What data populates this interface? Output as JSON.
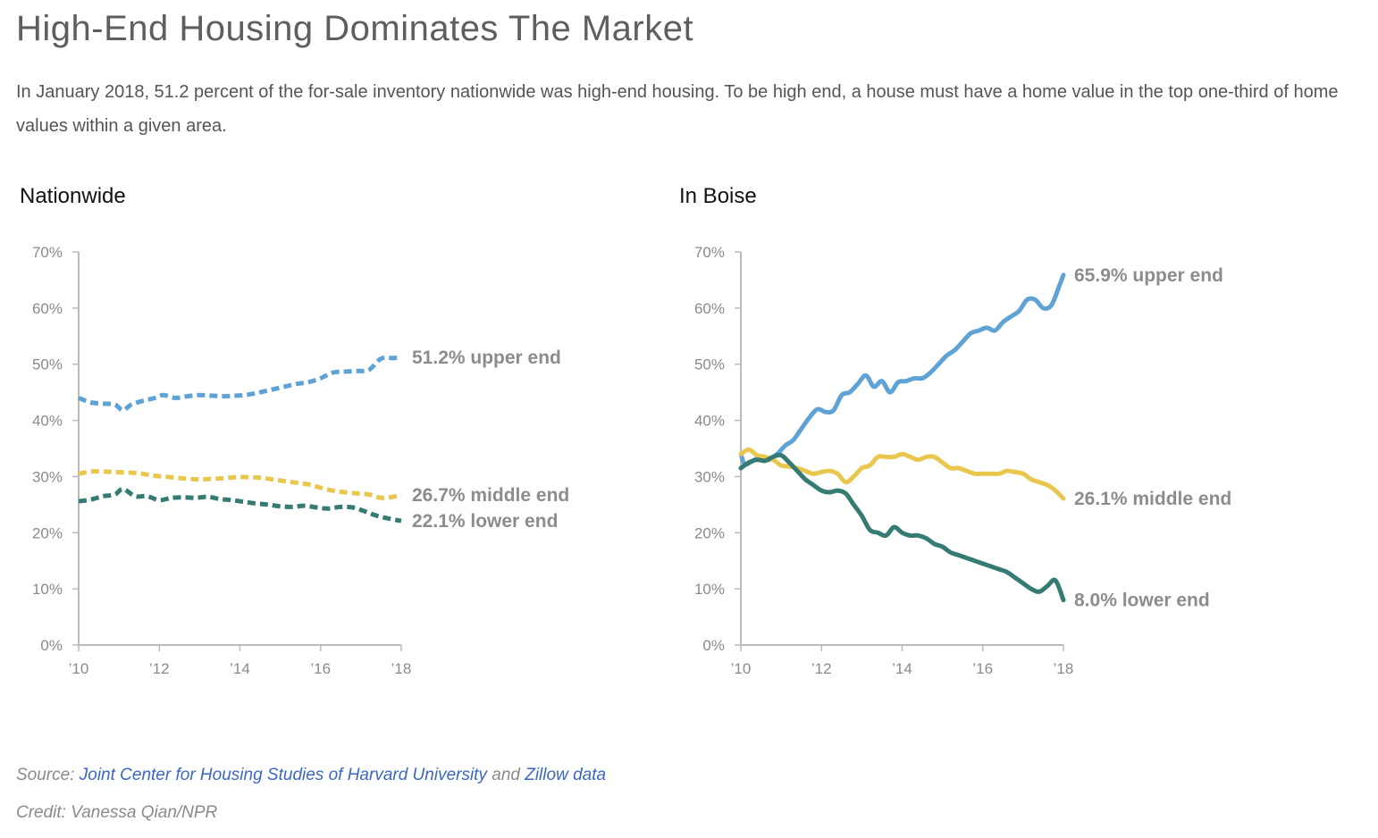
{
  "title": "High-End Housing Dominates The Market",
  "subtitle": "In January 2018, 51.2 percent of the for-sale inventory nationwide was high-end housing. To be high end, a house must have a home value in the top one-third of home values within a given area.",
  "footer": {
    "source_prefix": "Source:",
    "source_link_1": "Joint Center for Housing Studies of Harvard University",
    "source_and": "and",
    "source_link_2": "Zillow data",
    "credit": "Credit: Vanessa Qian/NPR"
  },
  "colors": {
    "upper": "#5fa3d6",
    "middle": "#e9c74f",
    "lower": "#357b74",
    "axis": "#bbbbbb",
    "label": "#8c8c8c"
  },
  "chart_data": [
    {
      "type": "line",
      "title": "Nationwide",
      "line_style": "dashed",
      "x_ticks": [
        2010,
        2012,
        2014,
        2016,
        2018
      ],
      "x_tick_labels": [
        "’10",
        "’12",
        "’14",
        "’16",
        "’18"
      ],
      "y_ticks": [
        0,
        10,
        20,
        30,
        40,
        50,
        60,
        70
      ],
      "y_tick_labels": [
        "0%",
        "10%",
        "20%",
        "30%",
        "40%",
        "50%",
        "60%",
        "70%"
      ],
      "xlim": [
        2010,
        2018
      ],
      "ylim": [
        0,
        70
      ],
      "series": [
        {
          "key": "upper",
          "label": "51.2% upper end",
          "x": [
            2010.0,
            2010.3,
            2010.6,
            2010.9,
            2011.1,
            2011.3,
            2011.6,
            2011.9,
            2012.1,
            2012.4,
            2012.7,
            2013.0,
            2013.3,
            2013.6,
            2013.9,
            2014.2,
            2014.5,
            2014.8,
            2015.1,
            2015.4,
            2015.7,
            2016.0,
            2016.3,
            2016.6,
            2016.9,
            2017.2,
            2017.5,
            2017.8,
            2018.0
          ],
          "y": [
            44.0,
            43.2,
            43.0,
            42.8,
            41.8,
            42.8,
            43.5,
            44.0,
            44.5,
            44.0,
            44.3,
            44.5,
            44.4,
            44.3,
            44.4,
            44.6,
            45.0,
            45.5,
            46.0,
            46.5,
            46.8,
            47.5,
            48.5,
            48.7,
            48.8,
            49.0,
            51.0,
            51.1,
            51.2
          ]
        },
        {
          "key": "middle",
          "label": "26.7% middle end",
          "x": [
            2010.0,
            2010.3,
            2010.6,
            2010.9,
            2011.2,
            2011.5,
            2011.8,
            2012.1,
            2012.4,
            2012.7,
            2013.0,
            2013.3,
            2013.6,
            2013.9,
            2014.2,
            2014.5,
            2014.8,
            2015.1,
            2015.4,
            2015.7,
            2016.0,
            2016.3,
            2016.6,
            2016.9,
            2017.2,
            2017.5,
            2017.8,
            2018.0
          ],
          "y": [
            30.5,
            30.9,
            30.9,
            30.8,
            30.7,
            30.6,
            30.2,
            30.0,
            29.8,
            29.6,
            29.5,
            29.6,
            29.7,
            29.9,
            29.9,
            29.8,
            29.5,
            29.2,
            28.9,
            28.6,
            28.0,
            27.5,
            27.2,
            27.0,
            26.8,
            26.2,
            26.4,
            26.7
          ]
        },
        {
          "key": "lower",
          "label": "22.1% lower end",
          "x": [
            2010.0,
            2010.3,
            2010.6,
            2010.9,
            2011.1,
            2011.4,
            2011.7,
            2012.0,
            2012.3,
            2012.6,
            2012.9,
            2013.2,
            2013.5,
            2013.8,
            2014.1,
            2014.4,
            2014.7,
            2015.0,
            2015.3,
            2015.6,
            2015.9,
            2016.2,
            2016.5,
            2016.8,
            2017.1,
            2017.4,
            2017.7,
            2018.0
          ],
          "y": [
            25.6,
            25.9,
            26.5,
            26.8,
            27.8,
            26.5,
            26.5,
            25.8,
            26.2,
            26.3,
            26.2,
            26.4,
            26.0,
            25.8,
            25.5,
            25.2,
            25.0,
            24.7,
            24.6,
            24.8,
            24.5,
            24.3,
            24.6,
            24.5,
            23.8,
            23.0,
            22.5,
            22.1
          ]
        }
      ]
    },
    {
      "type": "line",
      "title": "In Boise",
      "line_style": "solid",
      "x_ticks": [
        2010,
        2012,
        2014,
        2016,
        2018
      ],
      "x_tick_labels": [
        "’10",
        "’12",
        "’14",
        "’16",
        "’18"
      ],
      "y_ticks": [
        0,
        10,
        20,
        30,
        40,
        50,
        60,
        70
      ],
      "y_tick_labels": [
        "0%",
        "10%",
        "20%",
        "30%",
        "40%",
        "50%",
        "60%",
        "70%"
      ],
      "xlim": [
        2010,
        2018
      ],
      "ylim": [
        0,
        70
      ],
      "series": [
        {
          "key": "upper",
          "label": "65.9% upper end",
          "x": [
            2010.0,
            2010.1,
            2010.3,
            2010.5,
            2010.7,
            2010.9,
            2011.1,
            2011.3,
            2011.5,
            2011.7,
            2011.9,
            2012.1,
            2012.3,
            2012.5,
            2012.7,
            2012.9,
            2013.1,
            2013.3,
            2013.5,
            2013.7,
            2013.9,
            2014.1,
            2014.3,
            2014.5,
            2014.7,
            2014.9,
            2015.1,
            2015.3,
            2015.5,
            2015.7,
            2015.9,
            2016.1,
            2016.3,
            2016.5,
            2016.7,
            2016.9,
            2017.1,
            2017.3,
            2017.5,
            2017.7,
            2017.9,
            2018.0
          ],
          "y": [
            34.0,
            32.2,
            32.8,
            33.5,
            33.0,
            34.0,
            35.5,
            36.5,
            38.5,
            40.5,
            42.0,
            41.5,
            41.8,
            44.5,
            45.0,
            46.5,
            48.0,
            46.0,
            47.0,
            45.0,
            46.8,
            47.0,
            47.5,
            47.5,
            48.5,
            50.0,
            51.5,
            52.5,
            54.0,
            55.5,
            56.0,
            56.5,
            56.0,
            57.5,
            58.5,
            59.5,
            61.5,
            61.5,
            60.0,
            60.5,
            64.0,
            65.9
          ]
        },
        {
          "key": "middle",
          "label": "26.1% middle end",
          "x": [
            2010.0,
            2010.2,
            2010.4,
            2010.6,
            2010.8,
            2011.0,
            2011.2,
            2011.4,
            2011.6,
            2011.8,
            2012.0,
            2012.2,
            2012.4,
            2012.6,
            2012.8,
            2013.0,
            2013.2,
            2013.4,
            2013.6,
            2013.8,
            2014.0,
            2014.2,
            2014.4,
            2014.6,
            2014.8,
            2015.0,
            2015.2,
            2015.4,
            2015.6,
            2015.8,
            2016.0,
            2016.2,
            2016.4,
            2016.6,
            2016.8,
            2017.0,
            2017.2,
            2017.4,
            2017.6,
            2017.8,
            2018.0
          ],
          "y": [
            34.0,
            34.8,
            33.8,
            33.5,
            33.0,
            32.0,
            31.8,
            31.5,
            31.0,
            30.5,
            30.8,
            31.0,
            30.5,
            29.0,
            30.0,
            31.5,
            32.0,
            33.5,
            33.5,
            33.5,
            34.0,
            33.5,
            33.0,
            33.5,
            33.5,
            32.5,
            31.5,
            31.5,
            31.0,
            30.5,
            30.5,
            30.5,
            30.5,
            31.0,
            30.8,
            30.5,
            29.5,
            29.0,
            28.5,
            27.5,
            26.1
          ]
        },
        {
          "key": "lower",
          "label": "8.0% lower end",
          "x": [
            2010.0,
            2010.2,
            2010.4,
            2010.6,
            2010.8,
            2011.0,
            2011.2,
            2011.4,
            2011.6,
            2011.8,
            2012.0,
            2012.2,
            2012.4,
            2012.6,
            2012.8,
            2013.0,
            2013.2,
            2013.4,
            2013.6,
            2013.8,
            2014.0,
            2014.2,
            2014.4,
            2014.6,
            2014.8,
            2015.0,
            2015.2,
            2015.4,
            2015.6,
            2015.8,
            2016.0,
            2016.2,
            2016.4,
            2016.6,
            2016.8,
            2017.0,
            2017.2,
            2017.4,
            2017.6,
            2017.8,
            2018.0
          ],
          "y": [
            31.5,
            32.5,
            33.0,
            32.8,
            33.5,
            33.8,
            32.5,
            31.0,
            29.5,
            28.5,
            27.5,
            27.2,
            27.5,
            27.0,
            25.0,
            23.0,
            20.5,
            20.0,
            19.5,
            21.0,
            20.0,
            19.5,
            19.5,
            19.0,
            18.0,
            17.5,
            16.5,
            16.0,
            15.5,
            15.0,
            14.5,
            14.0,
            13.5,
            13.0,
            12.0,
            11.0,
            10.0,
            9.5,
            10.5,
            11.5,
            8.0
          ]
        }
      ]
    }
  ]
}
